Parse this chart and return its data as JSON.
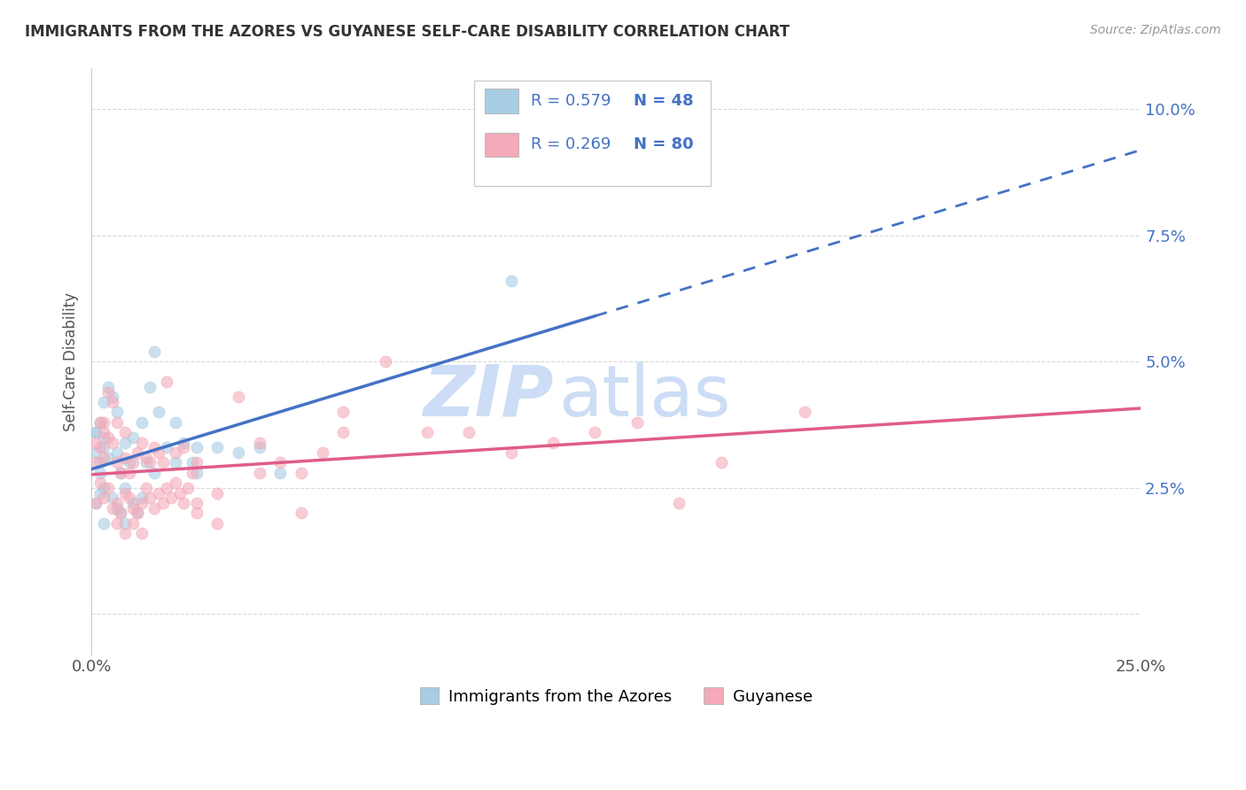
{
  "title": "IMMIGRANTS FROM THE AZORES VS GUYANESE SELF-CARE DISABILITY CORRELATION CHART",
  "source": "Source: ZipAtlas.com",
  "ylabel": "Self-Care Disability",
  "ytick_values": [
    0.0,
    0.025,
    0.05,
    0.075,
    0.1
  ],
  "ytick_labels": [
    "",
    "2.5%",
    "5.0%",
    "7.5%",
    "10.0%"
  ],
  "xlim": [
    0.0,
    0.25
  ],
  "ylim": [
    -0.008,
    0.108
  ],
  "legend_R1": "R = 0.579",
  "legend_N1": "N = 48",
  "legend_R2": "R = 0.269",
  "legend_N2": "N = 80",
  "legend_label1": "Immigrants from the Azores",
  "legend_label2": "Guyanese",
  "azores_scatter": [
    [
      0.001,
      0.036
    ],
    [
      0.002,
      0.038
    ],
    [
      0.003,
      0.033
    ],
    [
      0.001,
      0.032
    ],
    [
      0.002,
      0.03
    ],
    [
      0.003,
      0.035
    ],
    [
      0.004,
      0.045
    ],
    [
      0.005,
      0.043
    ],
    [
      0.003,
      0.042
    ],
    [
      0.006,
      0.04
    ],
    [
      0.004,
      0.031
    ],
    [
      0.007,
      0.028
    ],
    [
      0.006,
      0.032
    ],
    [
      0.008,
      0.034
    ],
    [
      0.009,
      0.03
    ],
    [
      0.01,
      0.035
    ],
    [
      0.012,
      0.038
    ],
    [
      0.014,
      0.045
    ],
    [
      0.013,
      0.03
    ],
    [
      0.015,
      0.028
    ],
    [
      0.016,
      0.04
    ],
    [
      0.018,
      0.033
    ],
    [
      0.02,
      0.038
    ],
    [
      0.022,
      0.034
    ],
    [
      0.024,
      0.03
    ],
    [
      0.025,
      0.028
    ],
    [
      0.03,
      0.033
    ],
    [
      0.035,
      0.032
    ],
    [
      0.04,
      0.033
    ],
    [
      0.045,
      0.028
    ],
    [
      0.001,
      0.022
    ],
    [
      0.002,
      0.024
    ],
    [
      0.003,
      0.025
    ],
    [
      0.005,
      0.023
    ],
    [
      0.006,
      0.021
    ],
    [
      0.007,
      0.02
    ],
    [
      0.008,
      0.025
    ],
    [
      0.01,
      0.022
    ],
    [
      0.011,
      0.02
    ],
    [
      0.012,
      0.023
    ],
    [
      0.015,
      0.052
    ],
    [
      0.02,
      0.03
    ],
    [
      0.025,
      0.033
    ],
    [
      0.008,
      0.018
    ],
    [
      0.003,
      0.018
    ],
    [
      0.1,
      0.066
    ],
    [
      0.001,
      0.036
    ],
    [
      0.002,
      0.028
    ]
  ],
  "guyanese_scatter": [
    [
      0.001,
      0.034
    ],
    [
      0.002,
      0.038
    ],
    [
      0.001,
      0.03
    ],
    [
      0.003,
      0.036
    ],
    [
      0.002,
      0.033
    ],
    [
      0.003,
      0.031
    ],
    [
      0.004,
      0.044
    ],
    [
      0.005,
      0.042
    ],
    [
      0.003,
      0.038
    ],
    [
      0.006,
      0.038
    ],
    [
      0.004,
      0.035
    ],
    [
      0.005,
      0.034
    ],
    [
      0.006,
      0.03
    ],
    [
      0.007,
      0.028
    ],
    [
      0.008,
      0.031
    ],
    [
      0.008,
      0.036
    ],
    [
      0.01,
      0.03
    ],
    [
      0.009,
      0.028
    ],
    [
      0.011,
      0.032
    ],
    [
      0.012,
      0.034
    ],
    [
      0.013,
      0.031
    ],
    [
      0.014,
      0.03
    ],
    [
      0.015,
      0.033
    ],
    [
      0.016,
      0.032
    ],
    [
      0.017,
      0.03
    ],
    [
      0.018,
      0.046
    ],
    [
      0.02,
      0.032
    ],
    [
      0.022,
      0.033
    ],
    [
      0.024,
      0.028
    ],
    [
      0.025,
      0.03
    ],
    [
      0.001,
      0.022
    ],
    [
      0.002,
      0.026
    ],
    [
      0.003,
      0.023
    ],
    [
      0.004,
      0.025
    ],
    [
      0.005,
      0.021
    ],
    [
      0.006,
      0.022
    ],
    [
      0.007,
      0.02
    ],
    [
      0.008,
      0.024
    ],
    [
      0.009,
      0.023
    ],
    [
      0.01,
      0.021
    ],
    [
      0.011,
      0.02
    ],
    [
      0.012,
      0.022
    ],
    [
      0.013,
      0.025
    ],
    [
      0.014,
      0.023
    ],
    [
      0.015,
      0.021
    ],
    [
      0.016,
      0.024
    ],
    [
      0.017,
      0.022
    ],
    [
      0.018,
      0.025
    ],
    [
      0.019,
      0.023
    ],
    [
      0.02,
      0.026
    ],
    [
      0.021,
      0.024
    ],
    [
      0.022,
      0.022
    ],
    [
      0.023,
      0.025
    ],
    [
      0.025,
      0.022
    ],
    [
      0.03,
      0.024
    ],
    [
      0.035,
      0.043
    ],
    [
      0.04,
      0.034
    ],
    [
      0.045,
      0.03
    ],
    [
      0.05,
      0.028
    ],
    [
      0.055,
      0.032
    ],
    [
      0.06,
      0.036
    ],
    [
      0.07,
      0.05
    ],
    [
      0.08,
      0.036
    ],
    [
      0.09,
      0.036
    ],
    [
      0.1,
      0.032
    ],
    [
      0.11,
      0.034
    ],
    [
      0.12,
      0.036
    ],
    [
      0.13,
      0.038
    ],
    [
      0.14,
      0.022
    ],
    [
      0.15,
      0.03
    ],
    [
      0.006,
      0.018
    ],
    [
      0.008,
      0.016
    ],
    [
      0.01,
      0.018
    ],
    [
      0.012,
      0.016
    ],
    [
      0.025,
      0.02
    ],
    [
      0.03,
      0.018
    ],
    [
      0.04,
      0.028
    ],
    [
      0.05,
      0.02
    ],
    [
      0.06,
      0.04
    ],
    [
      0.17,
      0.04
    ]
  ],
  "azores_dot_color": "#a8cce4",
  "guyanese_dot_color": "#f4aab8",
  "azores_line_color": "#4472c4",
  "guyanese_line_color": "#e05c8a",
  "legend_text_color": "#4472c4",
  "title_color": "#333333",
  "source_color": "#999999",
  "grid_color": "#d8d8d8",
  "background_color": "#ffffff",
  "watermark_zip": "ZIP",
  "watermark_atlas": "atlas",
  "watermark_color": "#ccddf5"
}
